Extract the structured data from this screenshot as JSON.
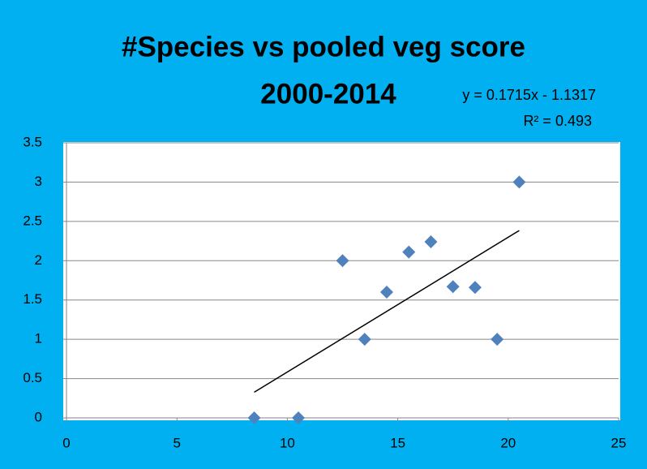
{
  "chart_data": {
    "type": "scatter",
    "title": [
      "#Species vs pooled veg score",
      "2000-2014"
    ],
    "annotations": [
      "y = 0.1715x - 1.1317",
      "R² = 0.493"
    ],
    "x": [
      8.5,
      10.5,
      12.5,
      13.5,
      14.5,
      15.5,
      16.5,
      17.5,
      18.5,
      19.5,
      20.5
    ],
    "series": [
      {
        "color": "#4F81BD",
        "values": [
          0,
          0,
          2,
          1,
          1.6,
          2.11,
          2.24,
          1.67,
          1.66,
          1,
          3
        ]
      }
    ],
    "trendline": {
      "slope": 0.1715,
      "intercept": -1.1317,
      "color": "#000000"
    },
    "xlim": [
      0,
      25
    ],
    "xticks": [
      0,
      5,
      10,
      15,
      20,
      25
    ],
    "ylim": [
      0,
      3.5
    ],
    "yticks": [
      0,
      0.5,
      1,
      1.5,
      2,
      2.5,
      3,
      3.5
    ],
    "grid": true
  }
}
